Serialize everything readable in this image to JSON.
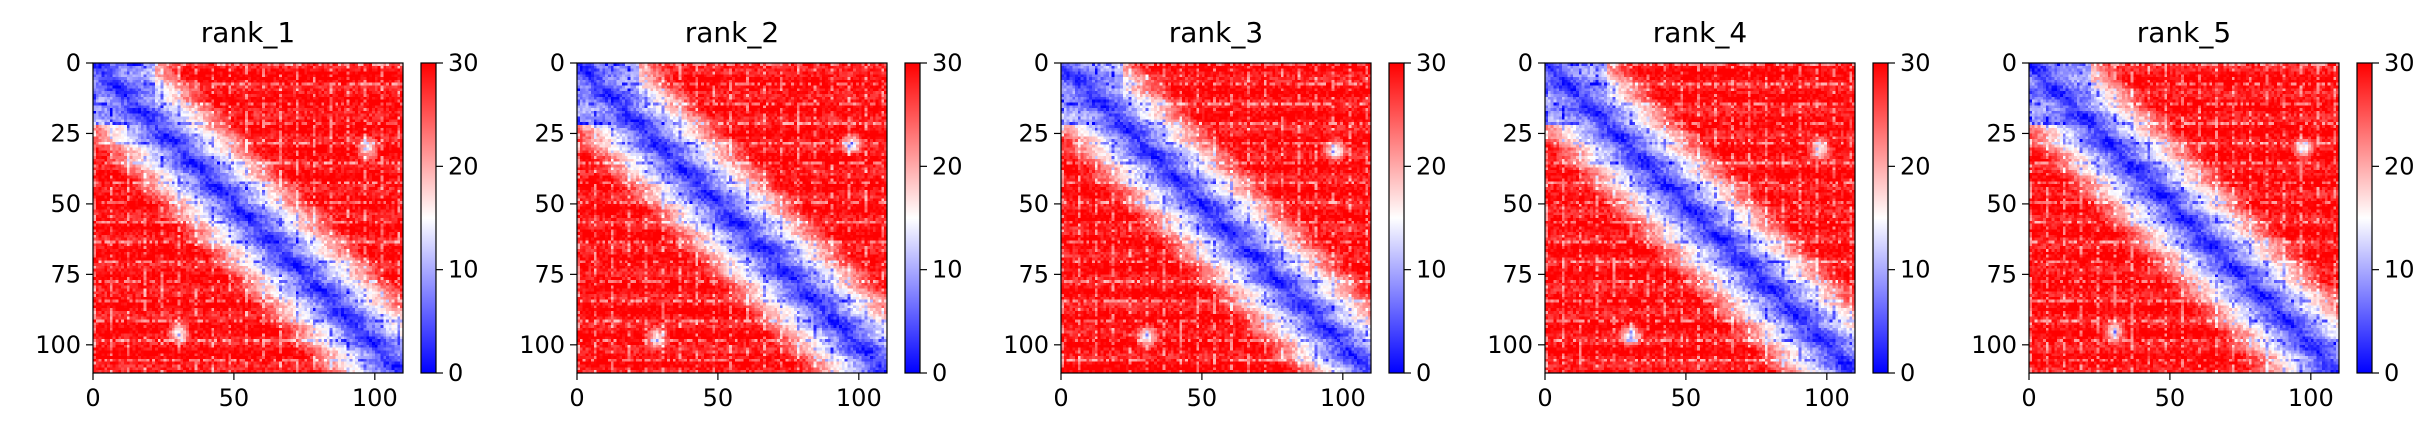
{
  "chart_data": [
    {
      "type": "heatmap",
      "title": "rank_1",
      "xticks": [
        0,
        50,
        100
      ],
      "yticks": [
        0,
        25,
        50,
        75,
        100
      ],
      "xlim": [
        0,
        110
      ],
      "ylim": [
        110,
        0
      ],
      "colorbar": {
        "ticks": [
          0,
          10,
          20,
          30
        ],
        "range": [
          0,
          30
        ],
        "colormap": "bwr",
        "low_color": "#0000ff",
        "mid_color": "#ffffff",
        "high_color": "#ff0000"
      },
      "matrix_size": 110,
      "features": {
        "diagonal_band": true,
        "blue_block_end": 22,
        "spots": [
          [
            95,
            30
          ],
          [
            30,
            97
          ]
        ]
      }
    },
    {
      "type": "heatmap",
      "title": "rank_2",
      "xticks": [
        0,
        50,
        100
      ],
      "yticks": [
        0,
        25,
        50,
        75,
        100
      ],
      "xlim": [
        0,
        110
      ],
      "ylim": [
        110,
        0
      ],
      "colorbar": {
        "ticks": [
          0,
          10,
          20,
          30
        ],
        "range": [
          0,
          30
        ],
        "colormap": "bwr",
        "low_color": "#0000ff",
        "mid_color": "#ffffff",
        "high_color": "#ff0000"
      },
      "matrix_size": 110,
      "features": {
        "diagonal_band": true,
        "blue_block_end": 22,
        "spots": [
          [
            97,
            28
          ],
          [
            28,
            97
          ]
        ]
      }
    },
    {
      "type": "heatmap",
      "title": "rank_3",
      "xticks": [
        0,
        50,
        100
      ],
      "yticks": [
        0,
        25,
        50,
        75,
        100
      ],
      "xlim": [
        0,
        110
      ],
      "ylim": [
        110,
        0
      ],
      "colorbar": {
        "ticks": [
          0,
          10,
          20,
          30
        ],
        "range": [
          0,
          30
        ],
        "colormap": "bwr",
        "low_color": "#0000ff",
        "mid_color": "#ffffff",
        "high_color": "#ff0000"
      },
      "matrix_size": 110,
      "features": {
        "diagonal_band": true,
        "blue_block_end": 22,
        "spots": [
          [
            97,
            30
          ],
          [
            30,
            97
          ]
        ]
      }
    },
    {
      "type": "heatmap",
      "title": "rank_4",
      "xticks": [
        0,
        50,
        100
      ],
      "yticks": [
        0,
        25,
        50,
        75,
        100
      ],
      "xlim": [
        0,
        110
      ],
      "ylim": [
        110,
        0
      ],
      "colorbar": {
        "ticks": [
          0,
          10,
          20,
          30
        ],
        "range": [
          0,
          30
        ],
        "colormap": "bwr",
        "low_color": "#0000ff",
        "mid_color": "#ffffff",
        "high_color": "#ff0000"
      },
      "matrix_size": 110,
      "features": {
        "diagonal_band": true,
        "blue_block_end": 22,
        "spots": [
          [
            96,
            30
          ],
          [
            30,
            97
          ]
        ]
      }
    },
    {
      "type": "heatmap",
      "title": "rank_5",
      "xticks": [
        0,
        50,
        100
      ],
      "yticks": [
        0,
        25,
        50,
        75,
        100
      ],
      "xlim": [
        0,
        110
      ],
      "ylim": [
        110,
        0
      ],
      "colorbar": {
        "ticks": [
          0,
          10,
          20,
          30
        ],
        "range": [
          0,
          30
        ],
        "colormap": "bwr",
        "low_color": "#0000ff",
        "mid_color": "#ffffff",
        "high_color": "#ff0000"
      },
      "matrix_size": 110,
      "features": {
        "diagonal_band": true,
        "blue_block_end": 22,
        "spots": [
          [
            95,
            30
          ],
          [
            30,
            97
          ]
        ]
      }
    }
  ]
}
